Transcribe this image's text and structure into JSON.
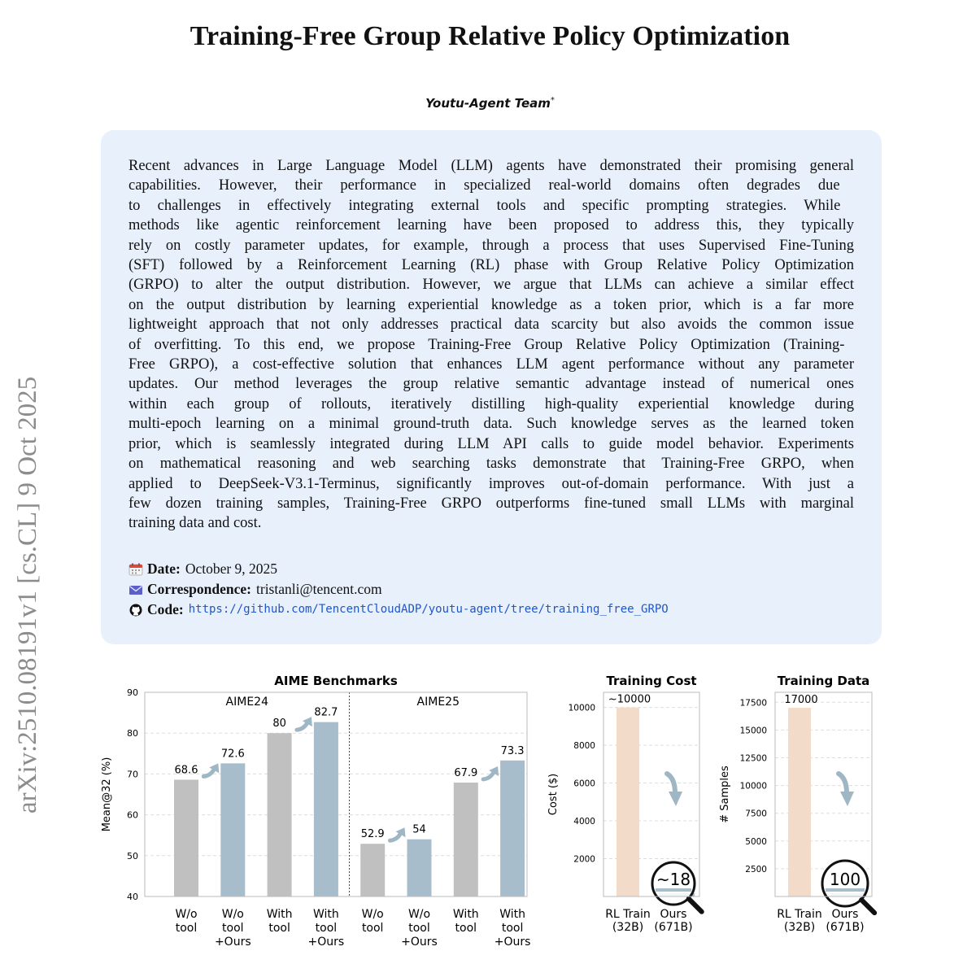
{
  "side_identifier": "arXiv:2510.08191v1  [cs.CL]  9 Oct 2025",
  "title": "Training-Free Group Relative Policy Optimization",
  "author": "Youtu-Agent Team",
  "author_mark": "*",
  "abstract_lines": [
    "Recent advances in Large Language Model (LLM) agents have demonstrated their promising general",
    "capabilities.  However, their performance in specialized real-world domains often degrades due",
    "to challenges in effectively integrating external tools and specific prompting strategies.  While",
    "methods like agentic reinforcement learning have been proposed to address this, they typically",
    "rely on costly parameter updates, for example, through a process that uses Supervised Fine-Tuning",
    "(SFT) followed by a Reinforcement Learning (RL) phase with Group Relative Policy Optimization",
    "(GRPO) to alter the output distribution. However, we argue that LLMs can achieve a similar effect",
    "on the output distribution by learning experiential knowledge as a token prior, which is a far more",
    "lightweight approach that not only addresses practical data scarcity but also avoids the common issue",
    "of overfitting.  To this end, we propose Training-Free Group Relative Policy Optimization (Training-",
    "Free GRPO), a cost-effective solution that enhances LLM agent performance without any parameter",
    "updates. Our method leverages the group relative semantic advantage instead of numerical ones",
    "within each group of rollouts, iteratively distilling high-quality experiential knowledge during",
    "multi-epoch learning on a minimal ground-truth data. Such knowledge serves as the learned token",
    "prior, which is seamlessly integrated during LLM API calls to guide model behavior. Experiments",
    "on mathematical reasoning and web searching tasks demonstrate that Training-Free GRPO, when",
    "applied to DeepSeek-V3.1-Terminus, significantly improves out-of-domain performance. With just a",
    "few dozen training samples, Training-Free GRPO outperforms fine-tuned small LLMs with marginal",
    "training data and cost."
  ],
  "meta": {
    "date_label": "Date:",
    "date_value": "October 9, 2025",
    "date_icon": "calendar-icon",
    "corr_label": "Correspondence:",
    "corr_value": "tristanli@tencent.com",
    "corr_icon": "envelope-icon",
    "code_label": "Code:",
    "code_value": "https://github.com/TencentCloudADP/youtu-agent/tree/training_free_GRPO",
    "code_icon": "github-icon"
  },
  "colors": {
    "box_bg": "#e8f0fc",
    "gray_bar": "#c0c0c0",
    "blue_bar": "#a7bdcb",
    "peach_bar": "#f2dcc9",
    "link": "#1f56c9"
  },
  "chart_data": [
    {
      "type": "bar",
      "title": "AIME Benchmarks",
      "ylabel": "Mean@32 (%)",
      "ylim": [
        40,
        90
      ],
      "yticks": [
        40,
        50,
        60,
        70,
        80,
        90
      ],
      "grid": true,
      "panels": [
        {
          "name": "AIME24",
          "categories": [
            "W/o tool",
            "W/o tool +Ours",
            "With tool",
            "With tool +Ours"
          ],
          "values": [
            68.6,
            72.6,
            80,
            82.7
          ]
        },
        {
          "name": "AIME25",
          "categories": [
            "W/o tool",
            "W/o tool +Ours",
            "With tool",
            "With tool +Ours"
          ],
          "values": [
            52.9,
            54,
            67.9,
            73.3
          ]
        }
      ],
      "tick_labels": [
        [
          "W/o",
          "tool"
        ],
        [
          "W/o",
          "tool",
          "+Ours"
        ],
        [
          "With",
          "tool"
        ],
        [
          "With",
          "tool",
          "+Ours"
        ],
        [
          "W/o",
          "tool"
        ],
        [
          "W/o",
          "tool",
          "+Ours"
        ],
        [
          "With",
          "tool"
        ],
        [
          "With",
          "tool",
          "+Ours"
        ]
      ],
      "value_labels": [
        "68.6",
        "72.6",
        "80",
        "82.7",
        "52.9",
        "54",
        "67.9",
        "73.3"
      ]
    },
    {
      "type": "bar",
      "title": "Training Cost",
      "ylabel": "Cost ($)",
      "categories": [
        "RL Train (32B)",
        "Ours (671B)"
      ],
      "tick_labels": [
        [
          "RL Train",
          "(32B)"
        ],
        [
          "Ours",
          "(671B)"
        ]
      ],
      "values": [
        10000,
        18
      ],
      "value_labels": [
        "~10000",
        "~18"
      ],
      "ylim": [
        0,
        10800
      ],
      "yticks": [
        2000,
        4000,
        6000,
        8000,
        10000
      ],
      "grid": true
    },
    {
      "type": "bar",
      "title": "Training Data",
      "ylabel": "# Samples",
      "categories": [
        "RL Train (32B)",
        "Ours (671B)"
      ],
      "tick_labels": [
        [
          "RL Train",
          "(32B)"
        ],
        [
          "Ours",
          "(671B)"
        ]
      ],
      "values": [
        17000,
        100
      ],
      "value_labels": [
        "17000",
        "100"
      ],
      "ylim": [
        0,
        18400
      ],
      "yticks": [
        2500,
        5000,
        7500,
        10000,
        12500,
        15000,
        17500
      ],
      "grid": true
    }
  ]
}
